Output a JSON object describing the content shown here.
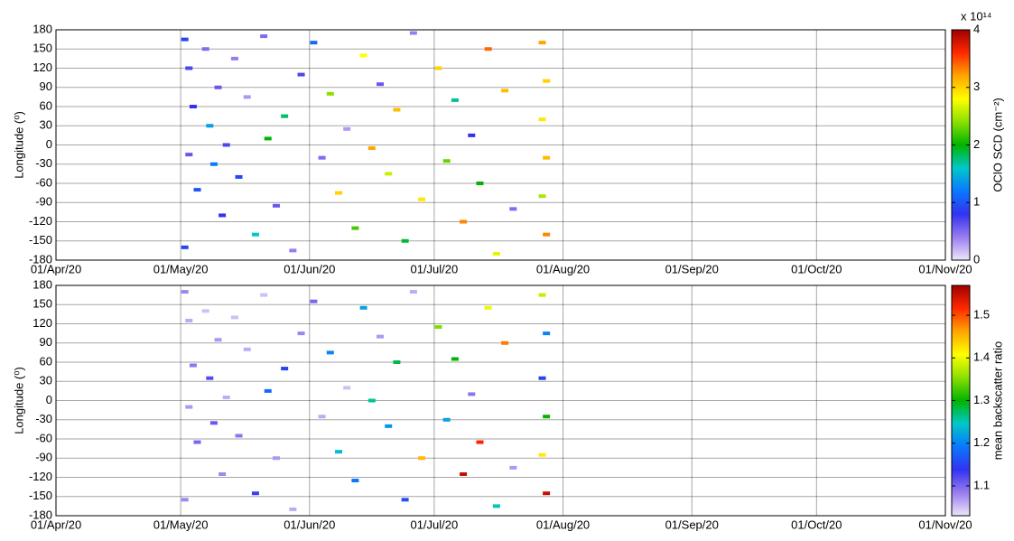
{
  "chart_data": [
    {
      "type": "heatmap",
      "ylabel": "Longitude (⁰)",
      "colorbar_label": "OClO SCD (cm⁻²)",
      "colorbar_scale": "x 10¹⁴",
      "xlim": [
        "01/Apr/20",
        "01/Nov/20"
      ],
      "xticks": [
        "01/Apr/20",
        "01/May/20",
        "01/Jun/20",
        "01/Jul/20",
        "01/Aug/20",
        "01/Sep/20",
        "01/Oct/20",
        "01/Nov/20"
      ],
      "ylim": [
        -180,
        180
      ],
      "yticks": [
        -180,
        -150,
        -120,
        -90,
        -60,
        -30,
        0,
        30,
        60,
        90,
        120,
        150,
        180
      ],
      "clim": [
        0,
        4
      ],
      "cticks": [
        0,
        1,
        2,
        3,
        4
      ],
      "grid": true,
      "colormap": [
        "#ece6fa",
        "#9a7cf0",
        "#3232f0",
        "#0a78ff",
        "#00c8c8",
        "#00b400",
        "#8ce000",
        "#ffff00",
        "#ffa500",
        "#ff2800",
        "#a00000"
      ],
      "series": [
        {
          "x": [
            "02/May/20",
            "03/May/20",
            "04/May/20",
            "03/May/20",
            "05/May/20",
            "02/May/20",
            "07/May/20",
            "08/May/20",
            "09/May/20",
            "10/May/20",
            "11/May/20",
            "12/May/20",
            "14/May/20",
            "15/May/20",
            "17/May/20",
            "19/May/20",
            "21/May/20",
            "22/May/20",
            "24/May/20",
            "26/May/20",
            "28/May/20",
            "30/May/20",
            "02/Jun/20",
            "04/Jun/20",
            "06/Jun/20",
            "08/Jun/20",
            "10/Jun/20",
            "12/Jun/20",
            "14/Jun/20",
            "16/Jun/20",
            "18/Jun/20",
            "20/Jun/20",
            "22/Jun/20",
            "24/Jun/20",
            "26/Jun/20",
            "28/Jun/20",
            "02/Jul/20",
            "04/Jul/20",
            "06/Jul/20",
            "08/Jul/20",
            "10/Jul/20",
            "12/Jul/20",
            "14/Jul/20",
            "16/Jul/20",
            "18/Jul/20",
            "20/Jul/20",
            "27/Jul/20",
            "28/Jul/20",
            "27/Jul/20",
            "28/Jul/20",
            "27/Jul/20",
            "28/Jul/20"
          ],
          "y": [
            165,
            120,
            60,
            -15,
            -70,
            -160,
            150,
            30,
            -30,
            90,
            -110,
            0,
            135,
            -50,
            75,
            -140,
            170,
            10,
            -95,
            45,
            -165,
            110,
            160,
            -20,
            80,
            -75,
            25,
            -130,
            140,
            -5,
            95,
            -45,
            55,
            -150,
            175,
            -85,
            120,
            -25,
            70,
            -120,
            15,
            -60,
            150,
            -170,
            85,
            -100,
            160,
            100,
            40,
            -20,
            -80,
            -140
          ],
          "values": [
            0.9,
            0.7,
            0.8,
            0.6,
            1.0,
            0.9,
            0.5,
            1.4,
            1.2,
            0.6,
            0.8,
            0.7,
            0.4,
            0.9,
            0.3,
            1.6,
            0.5,
            2.0,
            0.6,
            1.8,
            0.4,
            0.7,
            1.1,
            0.5,
            2.4,
            3.0,
            0.3,
            2.2,
            2.8,
            3.2,
            0.6,
            2.6,
            3.1,
            1.9,
            0.4,
            2.9,
            3.0,
            2.3,
            1.7,
            3.3,
            0.8,
            2.0,
            3.4,
            2.7,
            3.1,
            0.5,
            3.2,
            3.0,
            2.9,
            3.1,
            2.5,
            3.3
          ]
        }
      ]
    },
    {
      "type": "heatmap",
      "ylabel": "Longitude (⁰)",
      "colorbar_label": "mean backscatter ratio",
      "xlim": [
        "01/Apr/20",
        "01/Nov/20"
      ],
      "xticks": [
        "01/Apr/20",
        "01/May/20",
        "01/Jun/20",
        "01/Jul/20",
        "01/Aug/20",
        "01/Sep/20",
        "01/Oct/20",
        "01/Nov/20"
      ],
      "ylim": [
        -180,
        180
      ],
      "yticks": [
        -180,
        -150,
        -120,
        -90,
        -60,
        -30,
        0,
        30,
        60,
        90,
        120,
        150,
        180
      ],
      "clim": [
        1.03,
        1.57
      ],
      "cticks": [
        1.1,
        1.2,
        1.3,
        1.4,
        1.5
      ],
      "grid": true,
      "colormap": [
        "#ece6fa",
        "#9a7cf0",
        "#3232f0",
        "#0a78ff",
        "#00c8c8",
        "#00b400",
        "#8ce000",
        "#ffff00",
        "#ffa500",
        "#ff2800",
        "#a00000"
      ],
      "series": [
        {
          "x": [
            "02/May/20",
            "03/May/20",
            "04/May/20",
            "03/May/20",
            "05/May/20",
            "02/May/20",
            "07/May/20",
            "08/May/20",
            "09/May/20",
            "10/May/20",
            "11/May/20",
            "12/May/20",
            "14/May/20",
            "15/May/20",
            "17/May/20",
            "19/May/20",
            "21/May/20",
            "22/May/20",
            "24/May/20",
            "26/May/20",
            "28/May/20",
            "30/May/20",
            "02/Jun/20",
            "04/Jun/20",
            "06/Jun/20",
            "08/Jun/20",
            "10/Jun/20",
            "12/Jun/20",
            "14/Jun/20",
            "16/Jun/20",
            "18/Jun/20",
            "20/Jun/20",
            "22/Jun/20",
            "24/Jun/20",
            "26/Jun/20",
            "28/Jun/20",
            "02/Jul/20",
            "04/Jul/20",
            "06/Jul/20",
            "08/Jul/20",
            "10/Jul/20",
            "12/Jul/20",
            "14/Jul/20",
            "16/Jul/20",
            "18/Jul/20",
            "20/Jul/20",
            "27/Jul/20",
            "28/Jul/20",
            "27/Jul/20",
            "28/Jul/20",
            "27/Jul/20",
            "28/Jul/20"
          ],
          "y": [
            170,
            125,
            55,
            -10,
            -65,
            -155,
            140,
            35,
            -35,
            95,
            -115,
            5,
            130,
            -55,
            80,
            -145,
            165,
            15,
            -90,
            50,
            -170,
            105,
            155,
            -25,
            75,
            -80,
            20,
            -125,
            145,
            0,
            100,
            -40,
            60,
            -155,
            170,
            -90,
            115,
            -30,
            65,
            -115,
            10,
            -65,
            145,
            -165,
            90,
            -105,
            165,
            105,
            35,
            -25,
            -85,
            -145
          ],
          "values": [
            1.08,
            1.06,
            1.09,
            1.07,
            1.1,
            1.08,
            1.05,
            1.12,
            1.11,
            1.07,
            1.08,
            1.06,
            1.05,
            1.09,
            1.06,
            1.13,
            1.05,
            1.18,
            1.07,
            1.15,
            1.06,
            1.08,
            1.1,
            1.06,
            1.2,
            1.24,
            1.05,
            1.19,
            1.22,
            1.26,
            1.07,
            1.21,
            1.28,
            1.16,
            1.06,
            1.45,
            1.35,
            1.22,
            1.3,
            1.55,
            1.09,
            1.52,
            1.4,
            1.25,
            1.48,
            1.07,
            1.38,
            1.2,
            1.15,
            1.3,
            1.42,
            1.55
          ]
        }
      ]
    }
  ]
}
